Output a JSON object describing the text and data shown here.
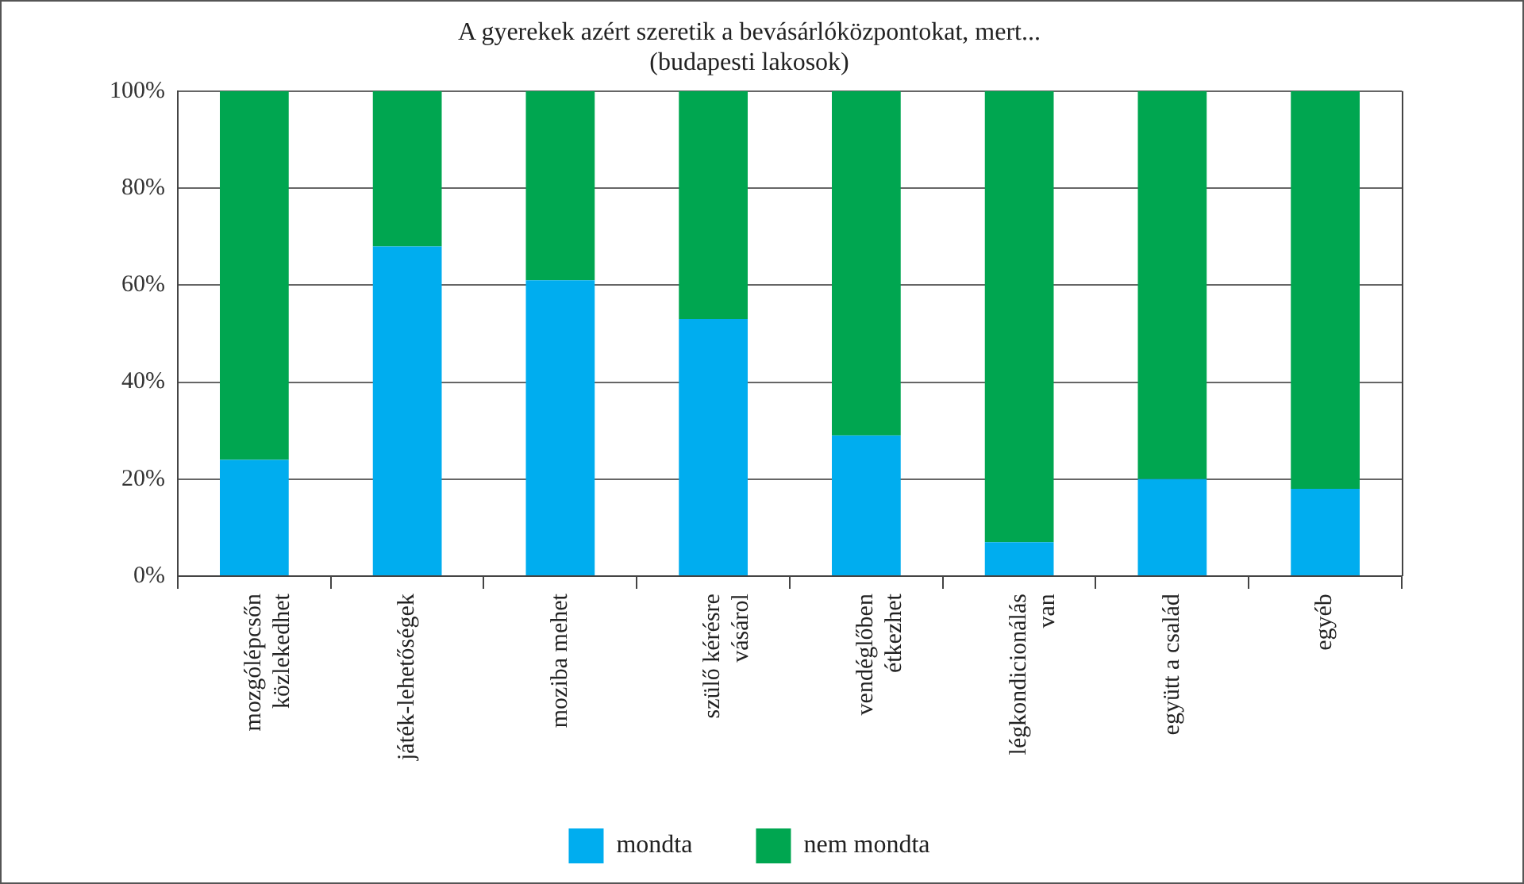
{
  "chart_data": {
    "type": "bar",
    "title": [
      "A gyerekek azért szeretik a bevásárlóközpontokat, mert...",
      "(budapesti lakosok)"
    ],
    "categories": [
      "mozgólépcsőn közlekedhet",
      "játék-lehetőségek",
      "moziba mehet",
      "szülő kérésre vásárol",
      "vendéglőben étkezhet",
      "légkondicionálás van",
      "együtt a család",
      "egyéb"
    ],
    "stacked": true,
    "series": [
      {
        "name": "mondta",
        "color": "#00adef",
        "values": [
          24,
          68,
          61,
          53,
          29,
          7,
          20,
          18
        ]
      },
      {
        "name": "nem mondta",
        "color": "#00a650",
        "values": [
          76,
          32,
          39,
          47,
          71,
          93,
          80,
          82
        ]
      }
    ],
    "ylim": [
      0,
      100
    ],
    "yticks": [
      {
        "value": 0,
        "label": "0%"
      },
      {
        "value": 20,
        "label": "20%"
      },
      {
        "value": 40,
        "label": "40%"
      },
      {
        "value": 60,
        "label": "60%"
      },
      {
        "value": 80,
        "label": "80%"
      },
      {
        "value": 100,
        "label": "100%"
      }
    ],
    "grid": "y",
    "legend": "bottom"
  }
}
